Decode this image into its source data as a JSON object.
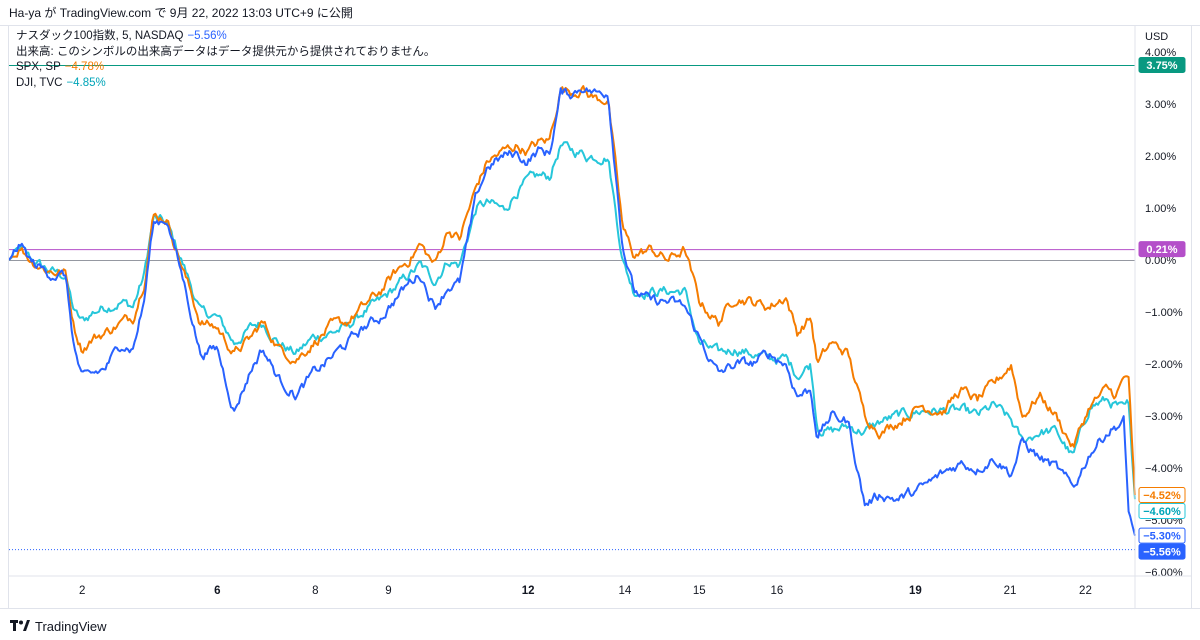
{
  "header": {
    "author": "Ha-ya",
    "connector": "が",
    "site": "TradingView.com",
    "date_text": "で 9月 22, 2022 13:03 UTC+9 に公開"
  },
  "legend": {
    "main": {
      "name": "ナスダック100指数, 5, NASDAQ",
      "change": "−5.56%",
      "color": "#2962ff"
    },
    "volume_note": "出来高: このシンボルの出来高データはデータ提供元から提供されておりません。",
    "series": [
      {
        "name": "SPX, SP",
        "change": "−4.78%",
        "color": "#f57c00"
      },
      {
        "name": "DJI, TVC",
        "change": "−4.85%",
        "color": "#26c6da"
      }
    ]
  },
  "footer": {
    "brand": "TradingView",
    "logo_icon": "tradingview-logo-icon"
  },
  "chart_data": {
    "type": "line",
    "y_unit": "USD",
    "ylim": [
      -6.2,
      4.1
    ],
    "y_ticks": [
      "4.00%",
      "3.00%",
      "2.00%",
      "1.00%",
      "0.00%",
      "−1.00%",
      "−2.00%",
      "−3.00%",
      "−4.00%",
      "−5.00%",
      "−6.00%"
    ],
    "y_tick_values": [
      4,
      3,
      2,
      1,
      0,
      -1,
      -2,
      -3,
      -4,
      -5,
      -6
    ],
    "xlim": [
      0,
      1.0
    ],
    "x_ticks": [
      {
        "label": "2",
        "x": 0.065,
        "bold": false
      },
      {
        "label": "6",
        "x": 0.185,
        "bold": true
      },
      {
        "label": "8",
        "x": 0.272,
        "bold": false
      },
      {
        "label": "9",
        "x": 0.337,
        "bold": false
      },
      {
        "label": "12",
        "x": 0.461,
        "bold": true
      },
      {
        "label": "14",
        "x": 0.547,
        "bold": false
      },
      {
        "label": "15",
        "x": 0.613,
        "bold": false
      },
      {
        "label": "16",
        "x": 0.682,
        "bold": false
      },
      {
        "label": "19",
        "x": 0.805,
        "bold": true
      },
      {
        "label": "21",
        "x": 0.889,
        "bold": false
      },
      {
        "label": "22",
        "x": 0.956,
        "bold": false
      }
    ],
    "hlines": [
      {
        "value": 3.75,
        "color": "#089981",
        "style": "solid",
        "label": "3.75%"
      },
      {
        "value": 0.21,
        "color": "#b44fc9",
        "style": "solid",
        "label": "0.21%"
      },
      {
        "value": 0.0,
        "color": "#9598a1",
        "style": "solid",
        "label": ""
      },
      {
        "value": -5.56,
        "color": "#2962ff",
        "style": "dotted",
        "label": ""
      }
    ],
    "price_labels": [
      {
        "value": 3.75,
        "text": "3.75%",
        "bg": "#089981",
        "fg": "#ffffff",
        "border": "#089981"
      },
      {
        "value": 0.21,
        "text": "0.21%",
        "bg": "#b44fc9",
        "fg": "#ffffff",
        "border": "#b44fc9"
      },
      {
        "value": -4.52,
        "text": "−4.52%",
        "bg": "#ffffff",
        "fg": "#f57c00",
        "border": "#f57c00"
      },
      {
        "value": -4.6,
        "text": "−4.60%",
        "bg": "#ffffff",
        "fg": "#00a5b8",
        "border": "#26c6da"
      },
      {
        "value": -5.3,
        "text": "−5.30%",
        "bg": "#ffffff",
        "fg": "#2962ff",
        "border": "#2962ff"
      },
      {
        "value": -5.56,
        "text": "−5.56%",
        "bg": "#2962ff",
        "fg": "#ffffff",
        "border": "#2962ff"
      }
    ],
    "grid": false,
    "legend_position": "top-left",
    "series": [
      {
        "name": "ナスダック100指数",
        "color": "#2962ff",
        "x": [
          0,
          0.01,
          0.02,
          0.035,
          0.05,
          0.058,
          0.065,
          0.075,
          0.085,
          0.1,
          0.11,
          0.12,
          0.128,
          0.14,
          0.155,
          0.17,
          0.185,
          0.2,
          0.215,
          0.225,
          0.24,
          0.255,
          0.27,
          0.285,
          0.3,
          0.315,
          0.33,
          0.345,
          0.355,
          0.365,
          0.378,
          0.39,
          0.4,
          0.415,
          0.425,
          0.44,
          0.45,
          0.46,
          0.47,
          0.48,
          0.49,
          0.5,
          0.51,
          0.513,
          0.522,
          0.532,
          0.545,
          0.555,
          0.57,
          0.585,
          0.6,
          0.613,
          0.63,
          0.645,
          0.66,
          0.675,
          0.69,
          0.7,
          0.712,
          0.718,
          0.73,
          0.745,
          0.76,
          0.775,
          0.79,
          0.81,
          0.83,
          0.845,
          0.86,
          0.875,
          0.89,
          0.9,
          0.915,
          0.93,
          0.945,
          0.96,
          0.975,
          0.983,
          0.99,
          0.994,
          1.0
        ],
        "values": [
          0.0,
          0.3,
          -0.05,
          -0.25,
          -0.3,
          -1.7,
          -2.3,
          -2.2,
          -2.1,
          -1.6,
          -1.7,
          -0.8,
          0.7,
          0.8,
          -0.4,
          -1.8,
          -1.7,
          -2.9,
          -2.1,
          -1.7,
          -2.3,
          -2.6,
          -2.2,
          -1.9,
          -1.6,
          -1.3,
          -1.1,
          -0.7,
          -0.45,
          -0.25,
          -0.9,
          -0.5,
          -0.45,
          1.2,
          1.8,
          2.0,
          2.05,
          1.9,
          2.1,
          2.05,
          3.2,
          3.2,
          3.35,
          3.3,
          3.2,
          3.25,
          0.3,
          -0.6,
          -0.8,
          -0.8,
          -0.9,
          -1.5,
          -2.2,
          -2.0,
          -2.0,
          -1.8,
          -2.0,
          -2.6,
          -2.5,
          -3.4,
          -3.0,
          -3.1,
          -4.7,
          -4.5,
          -4.6,
          -4.4,
          -4.1,
          -3.9,
          -4.0,
          -3.8,
          -4.1,
          -3.5,
          -3.8,
          -4.0,
          -4.4,
          -3.7,
          -3.3,
          -3.2,
          -3.1,
          -4.8,
          -5.3
        ]
      },
      {
        "name": "SPX, SP",
        "color": "#f57c00",
        "x": [
          0,
          0.01,
          0.02,
          0.035,
          0.05,
          0.058,
          0.065,
          0.075,
          0.085,
          0.1,
          0.11,
          0.12,
          0.128,
          0.14,
          0.155,
          0.17,
          0.185,
          0.2,
          0.215,
          0.225,
          0.24,
          0.255,
          0.27,
          0.285,
          0.3,
          0.315,
          0.33,
          0.345,
          0.355,
          0.365,
          0.378,
          0.39,
          0.4,
          0.415,
          0.425,
          0.44,
          0.45,
          0.46,
          0.47,
          0.48,
          0.49,
          0.5,
          0.51,
          0.513,
          0.522,
          0.532,
          0.545,
          0.555,
          0.57,
          0.585,
          0.6,
          0.613,
          0.63,
          0.645,
          0.66,
          0.675,
          0.69,
          0.7,
          0.712,
          0.718,
          0.73,
          0.745,
          0.76,
          0.775,
          0.79,
          0.81,
          0.83,
          0.845,
          0.86,
          0.875,
          0.89,
          0.9,
          0.915,
          0.93,
          0.945,
          0.96,
          0.975,
          0.983,
          0.99,
          0.994,
          1.0
        ],
        "values": [
          0.0,
          0.25,
          0.0,
          -0.2,
          -0.25,
          -1.3,
          -1.7,
          -1.5,
          -1.4,
          -1.2,
          -1.1,
          -0.4,
          0.85,
          0.8,
          -0.2,
          -1.2,
          -1.3,
          -1.8,
          -1.5,
          -1.2,
          -1.7,
          -1.9,
          -1.6,
          -1.3,
          -1.2,
          -0.9,
          -0.6,
          -0.2,
          0.0,
          0.3,
          -0.1,
          0.6,
          0.4,
          1.4,
          1.9,
          2.1,
          2.2,
          2.1,
          2.25,
          2.3,
          3.3,
          3.25,
          3.3,
          3.2,
          3.1,
          3.1,
          0.6,
          0.1,
          0.2,
          0.0,
          0.2,
          -0.8,
          -1.2,
          -0.7,
          -0.8,
          -0.9,
          -0.7,
          -1.4,
          -1.1,
          -2.0,
          -1.6,
          -1.8,
          -3.0,
          -3.3,
          -3.1,
          -2.8,
          -2.9,
          -2.5,
          -2.7,
          -2.4,
          -2.0,
          -3.0,
          -2.6,
          -3.0,
          -3.6,
          -2.8,
          -2.5,
          -2.6,
          -2.3,
          -2.2,
          -4.52
        ]
      },
      {
        "name": "DJI, TVC",
        "color": "#26c6da",
        "x": [
          0,
          0.01,
          0.02,
          0.035,
          0.05,
          0.058,
          0.065,
          0.075,
          0.085,
          0.1,
          0.11,
          0.12,
          0.128,
          0.14,
          0.155,
          0.17,
          0.185,
          0.2,
          0.215,
          0.225,
          0.24,
          0.255,
          0.27,
          0.285,
          0.3,
          0.315,
          0.33,
          0.345,
          0.355,
          0.365,
          0.378,
          0.39,
          0.4,
          0.415,
          0.425,
          0.44,
          0.45,
          0.46,
          0.47,
          0.48,
          0.49,
          0.5,
          0.51,
          0.513,
          0.522,
          0.532,
          0.545,
          0.555,
          0.57,
          0.585,
          0.6,
          0.613,
          0.63,
          0.645,
          0.66,
          0.675,
          0.69,
          0.7,
          0.712,
          0.718,
          0.73,
          0.745,
          0.76,
          0.775,
          0.79,
          0.81,
          0.83,
          0.845,
          0.86,
          0.875,
          0.89,
          0.9,
          0.915,
          0.93,
          0.945,
          0.96,
          0.975,
          0.983,
          0.99,
          0.994,
          1.0
        ],
        "values": [
          0.0,
          0.2,
          0.0,
          -0.2,
          -0.3,
          -1.0,
          -1.2,
          -1.0,
          -0.9,
          -0.8,
          -0.9,
          -0.3,
          0.8,
          0.7,
          -0.1,
          -1.0,
          -1.1,
          -1.6,
          -1.3,
          -1.2,
          -1.6,
          -1.8,
          -1.5,
          -1.4,
          -1.3,
          -1.0,
          -0.8,
          -0.5,
          -0.3,
          -0.1,
          -0.4,
          0.0,
          -0.1,
          1.0,
          1.1,
          0.95,
          1.3,
          1.5,
          1.6,
          1.6,
          2.2,
          2.1,
          2.05,
          2.0,
          2.0,
          2.0,
          0.0,
          -0.6,
          -0.6,
          -0.6,
          -0.6,
          -1.6,
          -1.8,
          -1.7,
          -1.8,
          -1.9,
          -1.9,
          -2.2,
          -2.0,
          -3.2,
          -3.3,
          -3.2,
          -3.3,
          -3.1,
          -3.0,
          -2.9,
          -2.9,
          -2.9,
          -3.0,
          -2.8,
          -3.1,
          -3.5,
          -3.3,
          -3.3,
          -3.8,
          -2.8,
          -2.7,
          -2.8,
          -2.9,
          -2.8,
          -4.6
        ]
      }
    ]
  }
}
